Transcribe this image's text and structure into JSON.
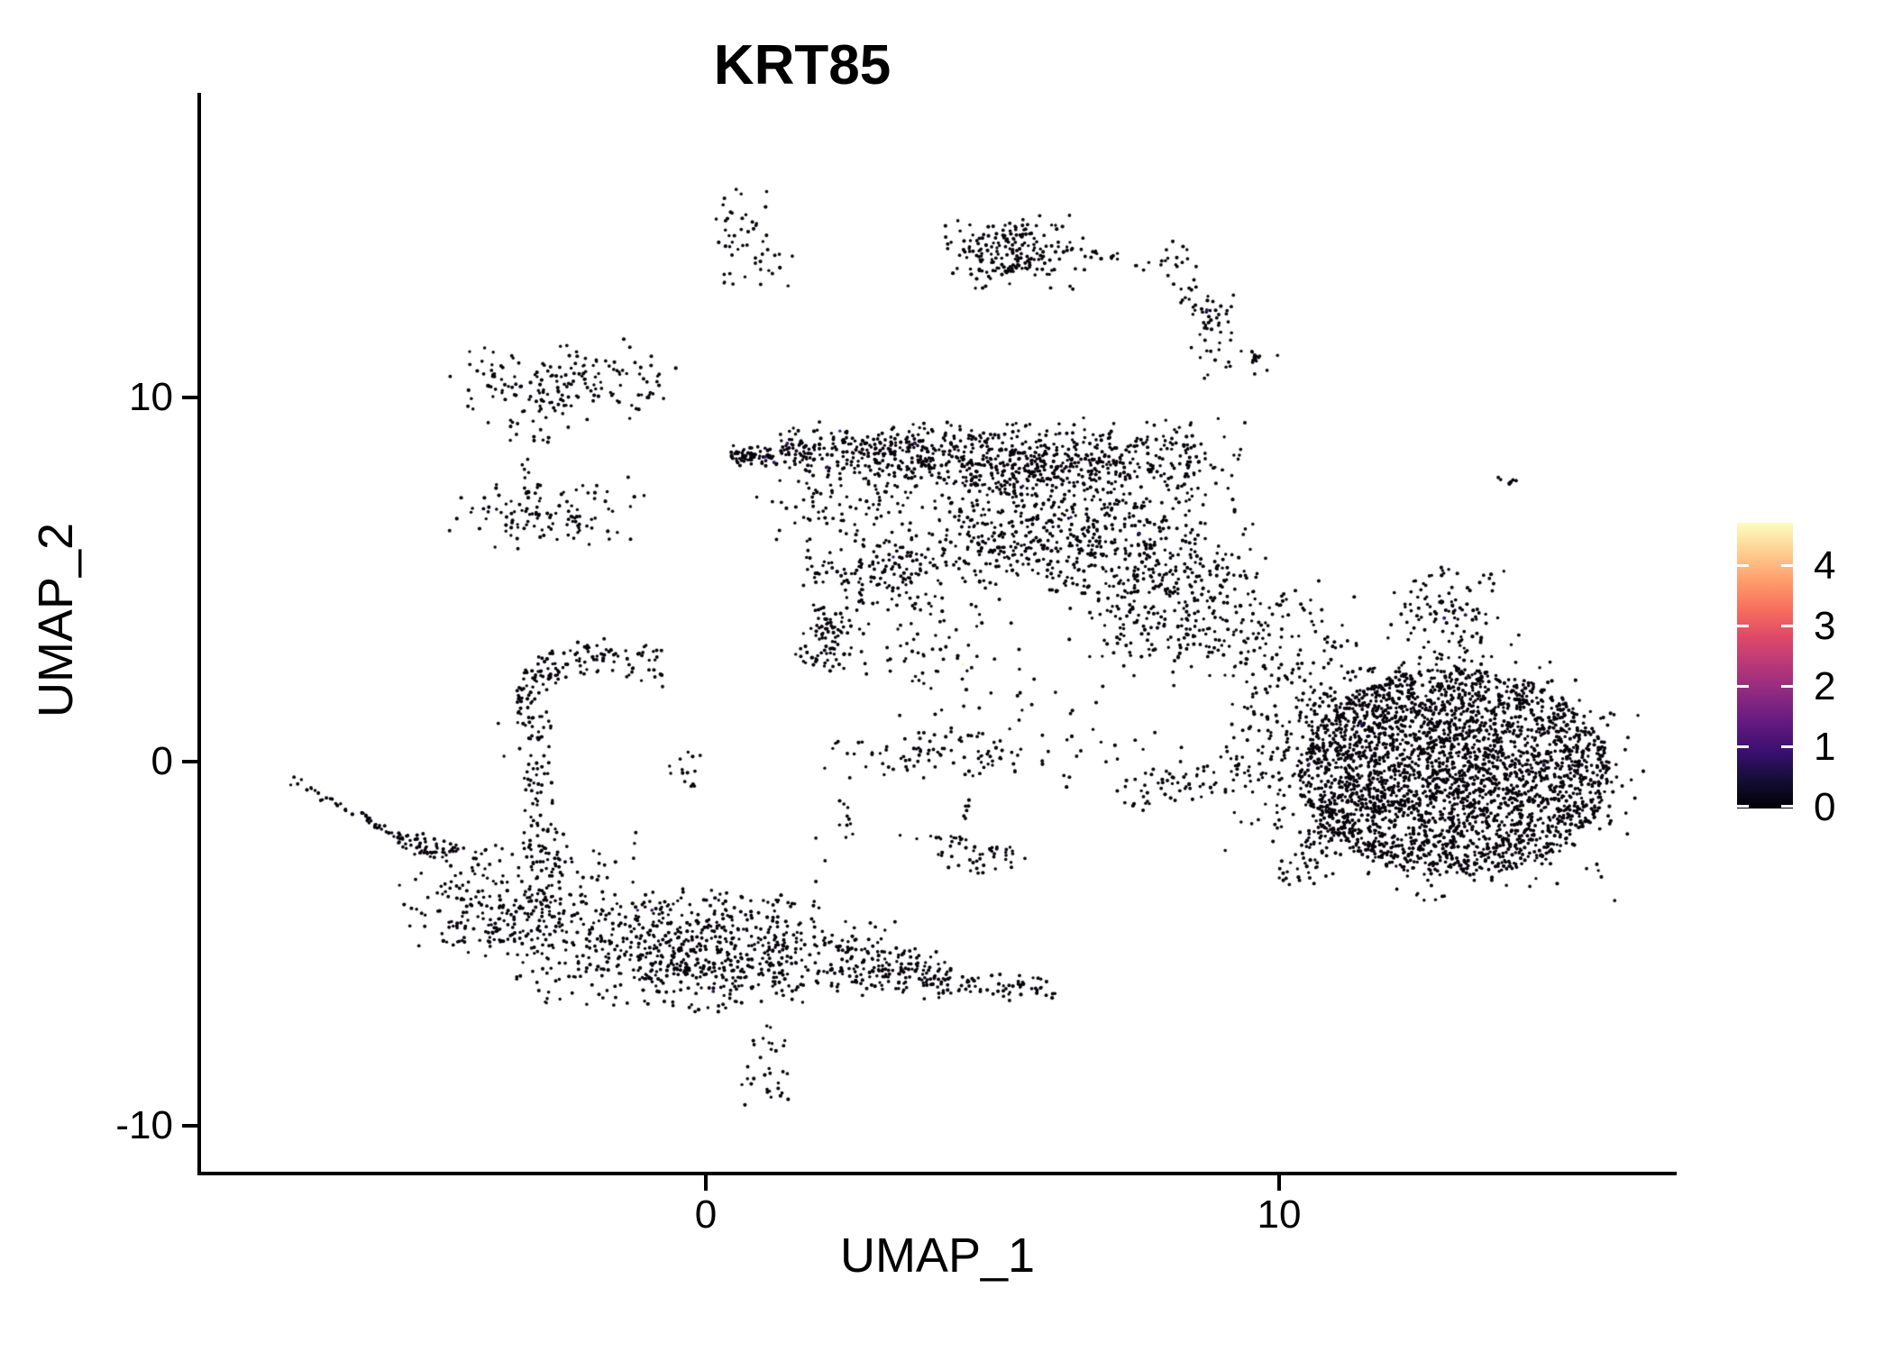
{
  "title": "KRT85",
  "axes": {
    "x_label": "UMAP_1",
    "y_label": "UMAP_2",
    "x_ticks": [
      {
        "label": "0",
        "value": 0
      },
      {
        "label": "10",
        "value": 10
      }
    ],
    "y_ticks": [
      {
        "label": "10",
        "value": 10
      },
      {
        "label": "0",
        "value": 0
      },
      {
        "label": "-10",
        "value": -10
      }
    ]
  },
  "legend": {
    "tick_labels": [
      {
        "label": "4"
      },
      {
        "label": "3"
      },
      {
        "label": "2"
      },
      {
        "label": "1"
      },
      {
        "label": "0"
      }
    ],
    "tick_values": [
      4,
      3,
      2,
      1,
      0
    ],
    "scale_min": 0,
    "scale_max": 4.7,
    "colormap": [
      [
        0.0,
        "#000004"
      ],
      [
        0.1,
        "#140e36"
      ],
      [
        0.2,
        "#3b0f70"
      ],
      [
        0.3,
        "#641a80"
      ],
      [
        0.4,
        "#8c2981"
      ],
      [
        0.5,
        "#b73779"
      ],
      [
        0.6,
        "#de4968"
      ],
      [
        0.7,
        "#f7705c"
      ],
      [
        0.8,
        "#fe9f6d"
      ],
      [
        0.9,
        "#fecf92"
      ],
      [
        1.0,
        "#fcfdbf"
      ]
    ]
  },
  "chart_data": {
    "type": "scatter",
    "title": "KRT85",
    "xlabel": "UMAP_1",
    "ylabel": "UMAP_2",
    "xlim": [
      -8.8,
      16.9
    ],
    "ylim": [
      -11.3,
      18.3
    ],
    "grid": false,
    "legend_position": "right",
    "point_radius_px": 1.9,
    "colors": {
      "zero_expression": "#050208",
      "low_expression": "#2d1666",
      "high_expression": "#fbf2b6"
    },
    "clusters": [
      {
        "kind": "gauss",
        "x": 0.55,
        "y": 14.92,
        "sx": 0.28,
        "sy": 0.5,
        "n": 25
      },
      {
        "kind": "gauss",
        "x": 0.97,
        "y": 13.9,
        "sx": 0.33,
        "sy": 0.42,
        "n": 22
      },
      {
        "kind": "gauss",
        "x": 0.43,
        "y": 13.2,
        "sx": 0.14,
        "sy": 0.1,
        "n": 5
      },
      {
        "kind": "gauss",
        "x": 5.35,
        "y": 14.0,
        "sx": 0.62,
        "sy": 0.5,
        "n": 200
      },
      {
        "kind": "strand",
        "x1": 6.1,
        "y1": 14.15,
        "x2": 7.6,
        "y2": 13.75,
        "w": 0.1,
        "n": 14
      },
      {
        "kind": "gauss",
        "x": 8.1,
        "y": 13.6,
        "sx": 0.3,
        "sy": 0.35,
        "n": 22
      },
      {
        "kind": "strand",
        "x1": 8.3,
        "y1": 13.0,
        "x2": 8.85,
        "y2": 12.1,
        "w": 0.12,
        "n": 16
      },
      {
        "kind": "gauss",
        "x": 8.85,
        "y": 12.2,
        "sx": 0.22,
        "sy": 0.38,
        "n": 26
      },
      {
        "kind": "gauss",
        "x": 8.78,
        "y": 11.15,
        "sx": 0.18,
        "sy": 0.3,
        "n": 12
      },
      {
        "kind": "gauss",
        "x": 9.5,
        "y": 11.0,
        "sx": 0.32,
        "sy": 0.2,
        "n": 16
      },
      {
        "kind": "gauss",
        "x": 13.95,
        "y": 7.75,
        "sx": 0.12,
        "sy": 0.12,
        "n": 7
      },
      {
        "kind": "gauss",
        "x": -2.55,
        "y": 10.35,
        "sx": 1.0,
        "sy": 0.6,
        "n": 170
      },
      {
        "kind": "strand",
        "x1": -1.2,
        "y1": 10.1,
        "x2": -0.55,
        "y2": 10.05,
        "w": 0.08,
        "n": 8
      },
      {
        "kind": "gauss",
        "x": -3.15,
        "y": 9.0,
        "sx": 0.28,
        "sy": 0.2,
        "n": 9
      },
      {
        "kind": "strand",
        "x1": -3.1,
        "y1": 8.5,
        "x2": -3.15,
        "y2": 7.3,
        "w": 0.08,
        "n": 7
      },
      {
        "kind": "gauss",
        "x": -2.7,
        "y": 6.8,
        "sx": 0.85,
        "sy": 0.5,
        "n": 115
      },
      {
        "kind": "strand",
        "x1": 0.45,
        "y1": 8.35,
        "x2": 1.8,
        "y2": 8.6,
        "w": 0.18,
        "n": 70
      },
      {
        "kind": "strand",
        "x1": 0.45,
        "y1": 8.35,
        "x2": 1.1,
        "y2": 8.45,
        "w": 0.1,
        "n": 25
      },
      {
        "kind": "gauss",
        "x": 3.2,
        "y": 8.45,
        "sx": 1.0,
        "sy": 0.42,
        "n": 330
      },
      {
        "kind": "gauss",
        "x": 5.8,
        "y": 8.2,
        "sx": 0.95,
        "sy": 0.55,
        "n": 380
      },
      {
        "kind": "gauss",
        "x": 7.9,
        "y": 8.2,
        "sx": 0.75,
        "sy": 0.6,
        "n": 170
      },
      {
        "kind": "gauss",
        "x": 2.4,
        "y": 7.0,
        "sx": 0.75,
        "sy": 0.5,
        "n": 70
      },
      {
        "kind": "gauss",
        "x": 5.7,
        "y": 6.2,
        "sx": 1.35,
        "sy": 0.75,
        "n": 460
      },
      {
        "kind": "gauss",
        "x": 8.0,
        "y": 4.9,
        "sx": 0.85,
        "sy": 1.15,
        "n": 330
      },
      {
        "kind": "gauss",
        "x": 2.9,
        "y": 5.2,
        "sx": 0.6,
        "sy": 0.55,
        "n": 130
      },
      {
        "kind": "strand",
        "x1": 2.3,
        "y1": 4.2,
        "x2": 1.9,
        "y2": 2.6,
        "w": 0.25,
        "n": 80
      },
      {
        "kind": "gauss",
        "x": 3.9,
        "y": 3.1,
        "sx": 0.9,
        "sy": 1.0,
        "n": 80
      },
      {
        "kind": "gauss",
        "x": 9.3,
        "y": 3.6,
        "sx": 1.0,
        "sy": 0.85,
        "n": 130
      },
      {
        "kind": "gauss",
        "x": 9.9,
        "y": 1.5,
        "sx": 0.6,
        "sy": 1.0,
        "n": 50
      },
      {
        "kind": "gauss",
        "x": 6.5,
        "y": 1.0,
        "sx": 1.2,
        "sy": 0.9,
        "n": 35
      },
      {
        "kind": "gauss",
        "x": 13.0,
        "y": 4.2,
        "sx": 0.5,
        "sy": 0.7,
        "n": 95
      },
      {
        "kind": "gauss",
        "x": 13.2,
        "y": 3.0,
        "sx": 0.5,
        "sy": 0.5,
        "n": 25
      },
      {
        "kind": "disk",
        "x": 13.05,
        "y": -0.3,
        "rx": 2.72,
        "ry": 2.85,
        "n": 2300
      },
      {
        "kind": "gauss",
        "x": 13.0,
        "y": -0.5,
        "sx": 1.6,
        "sy": 1.6,
        "n": 700
      },
      {
        "kind": "gauss",
        "x": 10.8,
        "y": 0.3,
        "sx": 0.85,
        "sy": 1.5,
        "n": 230
      },
      {
        "kind": "strand",
        "x1": 10.0,
        "y1": -3.3,
        "x2": 11.2,
        "y2": -1.8,
        "w": 0.2,
        "n": 45
      },
      {
        "kind": "strand",
        "x1": -3.3,
        "y1": 1.55,
        "cx": -2.6,
        "cy": 3.6,
        "x2": -0.75,
        "y2": 2.55,
        "w": 0.3,
        "n": 140
      },
      {
        "kind": "strand",
        "x1": -2.95,
        "y1": 1.5,
        "x2": -2.85,
        "y2": -4.1,
        "w": 0.16,
        "n": 120
      },
      {
        "kind": "gauss",
        "x": -0.38,
        "y": -0.15,
        "sx": 0.18,
        "sy": 0.3,
        "n": 14
      },
      {
        "kind": "strand",
        "x1": -7.25,
        "y1": -0.45,
        "x2": -5.3,
        "y2": -2.1,
        "w": 0.07,
        "n": 48
      },
      {
        "kind": "strand",
        "x1": -5.3,
        "y1": -2.1,
        "x2": -4.3,
        "y2": -2.6,
        "w": 0.18,
        "n": 55
      },
      {
        "kind": "gauss",
        "x": -3.3,
        "y": -3.6,
        "sx": 1.0,
        "sy": 0.85,
        "n": 190
      },
      {
        "kind": "gauss",
        "x": -3.6,
        "y": -4.6,
        "sx": 0.5,
        "sy": 0.4,
        "n": 70
      },
      {
        "kind": "gauss",
        "x": -0.1,
        "y": -5.3,
        "sx": 1.6,
        "sy": 0.75,
        "n": 650
      },
      {
        "kind": "gauss",
        "x": -0.5,
        "y": -4.3,
        "sx": 1.2,
        "sy": 0.45,
        "n": 90
      },
      {
        "kind": "strand",
        "x1": 2.2,
        "y1": -5.4,
        "x2": 4.3,
        "y2": -6.0,
        "w": 0.35,
        "n": 160
      },
      {
        "kind": "strand",
        "x1": 4.3,
        "y1": -6.1,
        "x2": 6.1,
        "y2": -6.3,
        "w": 0.18,
        "n": 55
      },
      {
        "kind": "gauss",
        "x": 1.02,
        "y": -8.6,
        "sx": 0.22,
        "sy": 0.65,
        "n": 32
      },
      {
        "kind": "gauss",
        "x": 4.0,
        "y": 0.25,
        "sx": 1.1,
        "sy": 0.35,
        "n": 95
      },
      {
        "kind": "strand",
        "x1": 7.1,
        "y1": -0.9,
        "x2": 9.6,
        "y2": -0.2,
        "w": 0.3,
        "n": 70
      },
      {
        "kind": "strand",
        "x1": 2.45,
        "y1": -1.0,
        "x2": 2.45,
        "y2": -2.2,
        "w": 0.07,
        "n": 10
      },
      {
        "kind": "strand",
        "x1": 3.1,
        "y1": -2.08,
        "x2": 4.6,
        "y2": -2.08,
        "w": 0.05,
        "n": 13
      },
      {
        "kind": "strand",
        "x1": 4.56,
        "y1": -1.0,
        "x2": 4.56,
        "y2": -1.65,
        "w": 0.05,
        "n": 6
      },
      {
        "kind": "gauss",
        "x": 4.85,
        "y": -2.6,
        "sx": 0.45,
        "sy": 0.25,
        "n": 42
      }
    ],
    "singles": {
      "black": [
        [
          9.12,
          10.97
        ],
        [
          1.0,
          -7.6
        ],
        [
          -3.62,
          1.05
        ],
        [
          -3.52,
          0.15
        ],
        [
          6.72,
          13.85
        ],
        [
          7.18,
          13.8
        ],
        [
          1.92,
          -2.1
        ],
        [
          2.08,
          -2.72
        ],
        [
          1.92,
          -3.29
        ],
        [
          1.89,
          -3.84
        ],
        [
          13.55,
          2.2
        ],
        [
          12.6,
          2.5
        ],
        [
          4.0,
          1.3
        ],
        [
          5.3,
          0.9
        ],
        [
          6.3,
          0.6
        ],
        [
          2.9,
          0.2
        ],
        [
          5.0,
          -0.1
        ],
        [
          3.3,
          -4.4
        ],
        [
          2.6,
          -4.9
        ],
        [
          11.9,
          3.4
        ]
      ],
      "purple": [
        [
          8.74,
          12.4
        ],
        [
          2.34,
          9.08
        ],
        [
          1.42,
          8.74
        ],
        [
          1.04,
          8.37
        ],
        [
          1.19,
          8.22
        ],
        [
          2.12,
          8.09
        ],
        [
          3.65,
          8.74
        ],
        [
          5.53,
          7.57
        ],
        [
          6.37,
          6.71
        ],
        [
          7.55,
          6.26
        ],
        [
          3.27,
          5.62
        ],
        [
          12.88,
          3.94
        ],
        [
          13.25,
          4.03
        ],
        [
          11.43,
          1.04
        ],
        [
          10.52,
          -0.07
        ],
        [
          14.62,
          -0.07
        ],
        [
          -0.94,
          -4.08
        ],
        [
          0.13,
          -6.31
        ],
        [
          -1.19,
          -4.08
        ]
      ],
      "cream": [
        [
          4.48,
          2.67
        ]
      ]
    }
  }
}
